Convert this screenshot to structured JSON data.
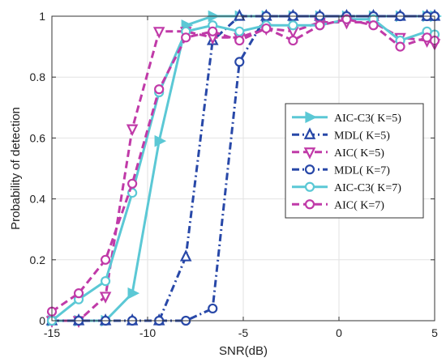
{
  "chart_data": {
    "type": "line",
    "xlabel": "SNR(dB)",
    "ylabel": "Probability of detection",
    "xlim": [
      -15,
      5
    ],
    "ylim": [
      0,
      1
    ],
    "xticks": [
      -15,
      -10,
      -5,
      0,
      5
    ],
    "yticks": [
      0,
      0.2,
      0.4,
      0.6,
      0.8,
      1
    ],
    "grid": true,
    "legend_position": "center-right",
    "series": [
      {
        "name": "AIC-C3( K=5)",
        "color": "#5BC8D5",
        "dash": "solid",
        "marker": "triangle-right",
        "points": [
          [
            -15,
            0
          ],
          [
            -13.6,
            0
          ],
          [
            -12.2,
            0
          ],
          [
            -10.8,
            0.09
          ],
          [
            -9.4,
            0.59
          ],
          [
            -8,
            0.97
          ],
          [
            -6.6,
            1
          ],
          [
            -5.2,
            1
          ],
          [
            -3.8,
            1
          ],
          [
            -2.4,
            1
          ],
          [
            -1,
            1
          ],
          [
            0.4,
            1
          ],
          [
            1.8,
            1
          ],
          [
            3.2,
            1
          ],
          [
            4.6,
            1
          ],
          [
            5,
            1
          ]
        ]
      },
      {
        "name": "MDL( K=5)",
        "color": "#2848A8",
        "dash": "dashdot",
        "marker": "triangle-up",
        "points": [
          [
            -15,
            0
          ],
          [
            -13.6,
            0
          ],
          [
            -12.2,
            0
          ],
          [
            -10.8,
            0
          ],
          [
            -9.4,
            0
          ],
          [
            -8,
            0.21
          ],
          [
            -6.6,
            0.92
          ],
          [
            -5.2,
            1
          ],
          [
            -3.8,
            1
          ],
          [
            -2.4,
            1
          ],
          [
            -1,
            1
          ],
          [
            0.4,
            1
          ],
          [
            1.8,
            1
          ],
          [
            3.2,
            1
          ],
          [
            4.6,
            1
          ],
          [
            5,
            1
          ]
        ]
      },
      {
        "name": "AIC( K=5)",
        "color": "#C03AA8",
        "dash": "dashed",
        "marker": "triangle-down",
        "points": [
          [
            -15,
            0
          ],
          [
            -13.6,
            0
          ],
          [
            -12.2,
            0.08
          ],
          [
            -10.8,
            0.63
          ],
          [
            -9.4,
            0.95
          ],
          [
            -8,
            0.95
          ],
          [
            -6.6,
            0.93
          ],
          [
            -5.2,
            0.93
          ],
          [
            -3.8,
            0.96
          ],
          [
            -2.4,
            0.95
          ],
          [
            -1,
            0.98
          ],
          [
            0.4,
            0.98
          ],
          [
            1.8,
            0.98
          ],
          [
            3.2,
            0.93
          ],
          [
            4.6,
            0.92
          ],
          [
            5,
            0.91
          ]
        ]
      },
      {
        "name": "MDL( K=7)",
        "color": "#2848A8",
        "dash": "dashdot",
        "marker": "circle",
        "points": [
          [
            -15,
            0
          ],
          [
            -13.6,
            0
          ],
          [
            -12.2,
            0
          ],
          [
            -10.8,
            0
          ],
          [
            -9.4,
            0
          ],
          [
            -8,
            0
          ],
          [
            -6.6,
            0.04
          ],
          [
            -5.2,
            0.85
          ],
          [
            -3.8,
            1
          ],
          [
            -2.4,
            1
          ],
          [
            -1,
            1
          ],
          [
            0.4,
            1
          ],
          [
            1.8,
            1
          ],
          [
            3.2,
            1
          ],
          [
            4.6,
            1
          ],
          [
            5,
            1
          ]
        ]
      },
      {
        "name": "AIC-C3( K=7)",
        "color": "#5BC8D5",
        "dash": "solid",
        "marker": "circle",
        "points": [
          [
            -15,
            0
          ],
          [
            -13.6,
            0.07
          ],
          [
            -12.2,
            0.13
          ],
          [
            -10.8,
            0.42
          ],
          [
            -9.4,
            0.75
          ],
          [
            -8,
            0.95
          ],
          [
            -6.6,
            0.97
          ],
          [
            -5.2,
            0.95
          ],
          [
            -3.8,
            0.97
          ],
          [
            -2.4,
            0.97
          ],
          [
            -1,
            0.97
          ],
          [
            0.4,
            0.99
          ],
          [
            1.8,
            0.99
          ],
          [
            3.2,
            0.92
          ],
          [
            4.6,
            0.95
          ],
          [
            5,
            0.94
          ]
        ]
      },
      {
        "name": "AIC( K=7)",
        "color": "#C03AA8",
        "dash": "dashed",
        "marker": "circle",
        "points": [
          [
            -15,
            0.03
          ],
          [
            -13.6,
            0.09
          ],
          [
            -12.2,
            0.2
          ],
          [
            -10.8,
            0.45
          ],
          [
            -9.4,
            0.76
          ],
          [
            -8,
            0.93
          ],
          [
            -6.6,
            0.95
          ],
          [
            -5.2,
            0.92
          ],
          [
            -3.8,
            0.96
          ],
          [
            -2.4,
            0.92
          ],
          [
            -1,
            0.97
          ],
          [
            0.4,
            0.99
          ],
          [
            1.8,
            0.97
          ],
          [
            3.2,
            0.9
          ],
          [
            4.6,
            0.93
          ],
          [
            5,
            0.92
          ]
        ]
      }
    ]
  }
}
